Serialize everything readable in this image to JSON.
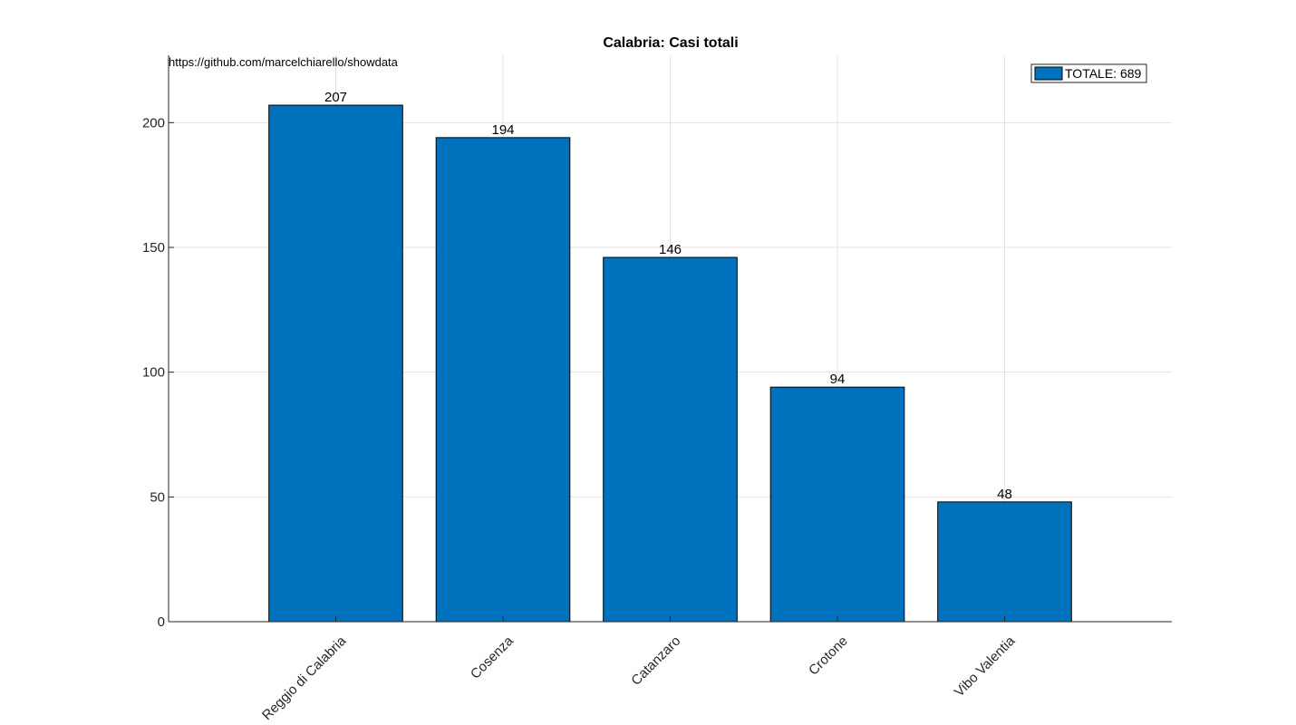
{
  "chart_data": {
    "type": "bar",
    "title": "Calabria: Casi totali",
    "source_text": "https://github.com/marcelchiarello/showdata",
    "categories": [
      "Reggio di Calabria",
      "Cosenza",
      "Catanzaro",
      "Crotone",
      "Vibo Valentia"
    ],
    "series": [
      {
        "name": "TOTALE: 689",
        "values": [
          207,
          194,
          146,
          94,
          48
        ],
        "color": "#0072BD"
      }
    ],
    "data_labels": [
      "207",
      "194",
      "146",
      "94",
      "48"
    ],
    "ylim": [
      0,
      227
    ],
    "yticks": [
      0,
      50,
      100,
      150,
      200
    ],
    "xlim": [
      0,
      6
    ],
    "xlabel": "",
    "ylabel": "",
    "grid": true,
    "legend_position": "top-right"
  }
}
